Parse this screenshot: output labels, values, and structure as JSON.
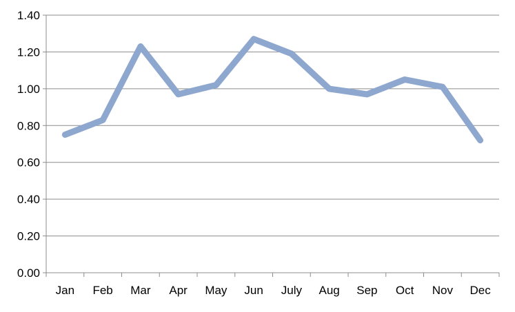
{
  "chart_data": {
    "type": "line",
    "title": "",
    "xlabel": "",
    "ylabel": "",
    "categories": [
      "Jan",
      "Feb",
      "Mar",
      "Apr",
      "May",
      "Jun",
      "July",
      "Aug",
      "Sep",
      "Oct",
      "Nov",
      "Dec"
    ],
    "series": [
      {
        "values": [
          0.75,
          0.83,
          1.23,
          0.97,
          1.02,
          1.27,
          1.19,
          1.0,
          0.97,
          1.05,
          1.01,
          0.72
        ],
        "color": "#8EA7CF"
      }
    ],
    "ylim": [
      0,
      1.4
    ],
    "yticks": [
      "0.00",
      "0.20",
      "0.40",
      "0.60",
      "0.80",
      "1.00",
      "1.20",
      "1.40"
    ],
    "grid": true,
    "legend": "none"
  }
}
